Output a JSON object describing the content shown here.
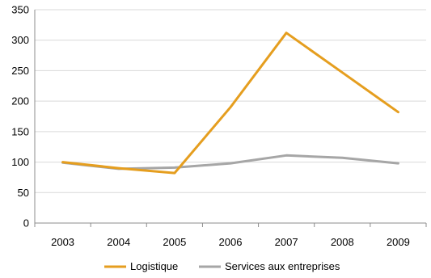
{
  "chart_data": {
    "type": "line",
    "title": "",
    "xlabel": "",
    "ylabel": "",
    "categories": [
      "2003",
      "2004",
      "2005",
      "2006",
      "2007",
      "2008",
      "2009"
    ],
    "ylim": [
      0,
      350
    ],
    "yticks": [
      0,
      50,
      100,
      150,
      200,
      250,
      300,
      350
    ],
    "grid": true,
    "legend_position": "bottom",
    "series": [
      {
        "name": "Logistique",
        "color": "#e59e1f",
        "values": [
          100,
          90,
          82,
          190,
          312,
          247,
          182
        ]
      },
      {
        "name": "Services aux entreprises",
        "color": "#a6a6a6",
        "values": [
          99,
          89,
          91,
          98,
          111,
          107,
          98
        ]
      }
    ]
  }
}
